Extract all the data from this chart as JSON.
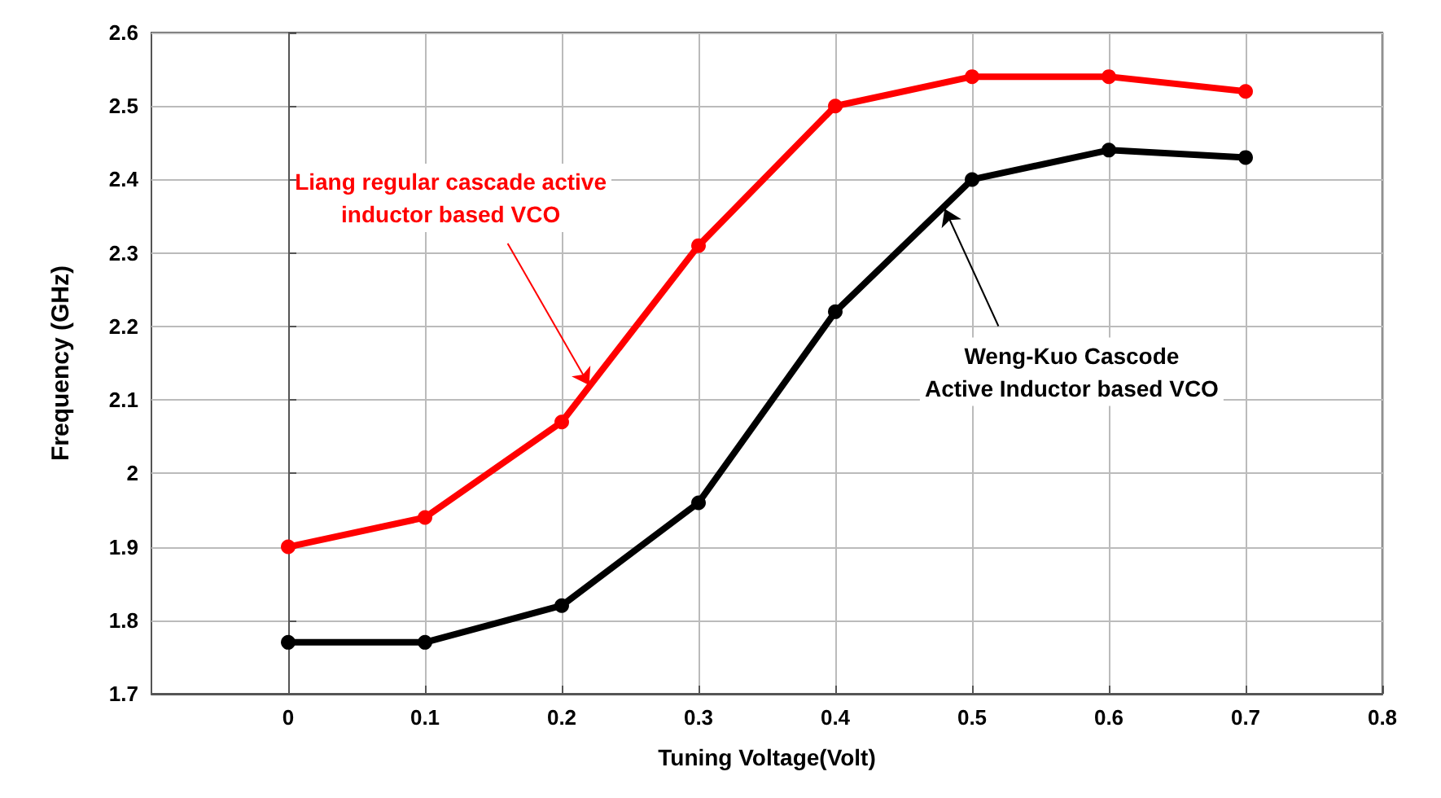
{
  "chart_data": {
    "type": "line",
    "xlabel": "Tuning Voltage(Volt)",
    "ylabel": "Frequency (GHz)",
    "x": [
      0,
      0.1,
      0.2,
      0.3,
      0.4,
      0.5,
      0.6,
      0.7
    ],
    "series": [
      {
        "color": "#ff0000",
        "values": [
          1.9,
          1.94,
          2.07,
          2.31,
          2.5,
          2.54,
          2.54,
          2.52
        ]
      },
      {
        "color": "#000000",
        "values": [
          1.77,
          1.77,
          1.82,
          1.96,
          2.22,
          2.4,
          2.44,
          2.43
        ]
      }
    ],
    "annotations": [
      {
        "text": "Liang regular cascade active\ninductor based VCO",
        "x": 0.22,
        "y": 2.12
      },
      {
        "text": "Weng-Kuo Cascode\nActive Inductor based VCO",
        "x": 0.48,
        "y": 2.36
      }
    ],
    "xlim": [
      -0.1,
      0.8
    ],
    "xticks": [
      0,
      0.1,
      0.2,
      0.3,
      0.4,
      0.5,
      0.6,
      0.7,
      0.8
    ],
    "ylim": [
      1.7,
      2.6
    ],
    "yticks": [
      1.7,
      1.8,
      1.9,
      2,
      2.1,
      2.2,
      2.3,
      2.4,
      2.5,
      2.6
    ],
    "grid": true,
    "marker": "circle",
    "line_style": "solid"
  }
}
